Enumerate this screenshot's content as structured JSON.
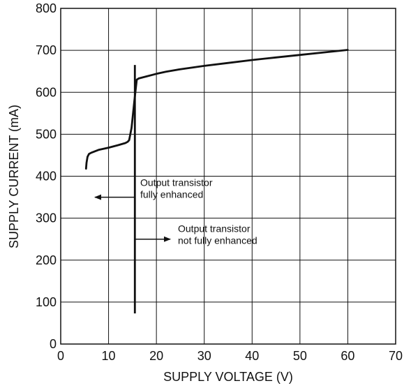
{
  "colors": {
    "background": "#ffffff",
    "grid": "#111111",
    "curve": "#111111",
    "text": "#111111"
  },
  "chart_data": {
    "type": "line",
    "title": "",
    "xlabel": "SUPPLY VOLTAGE (V)",
    "ylabel": "SUPPLY CURRENT (mA)",
    "xlim": [
      0,
      70
    ],
    "ylim": [
      0,
      800
    ],
    "x_ticks": [
      "0",
      "10",
      "20",
      "30",
      "40",
      "50",
      "60",
      "70"
    ],
    "y_ticks": [
      "0",
      "100",
      "200",
      "300",
      "400",
      "500",
      "600",
      "700",
      "800"
    ],
    "grid": true,
    "legend": "none",
    "series": [
      {
        "x": [
          5.3,
          5.4,
          5.6,
          5.9,
          6.4,
          8,
          10,
          12,
          13.5,
          14.0,
          14.3,
          14.8,
          15.4,
          15.9,
          16.3,
          18,
          20,
          22,
          25,
          30,
          35,
          40,
          45,
          50,
          55,
          60
        ],
        "y": [
          418,
          432,
          446,
          453,
          456,
          463,
          468,
          474,
          479,
          482,
          486,
          515,
          580,
          630,
          633,
          638,
          644,
          649,
          655,
          663,
          670,
          677,
          683,
          689,
          695,
          701
        ]
      }
    ],
    "threshold_line": {
      "x": 15.5,
      "y_range": [
        73,
        665
      ]
    },
    "annotations": [
      {
        "id": "left",
        "lines": [
          "Output transistor",
          "fully enhanced"
        ],
        "arrow_y": 350,
        "direction": "left"
      },
      {
        "id": "right",
        "lines": [
          "Output transistor",
          "not fully enhanced"
        ],
        "arrow_y": 250,
        "direction": "right"
      }
    ]
  }
}
